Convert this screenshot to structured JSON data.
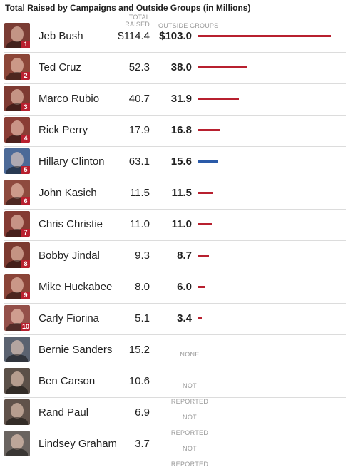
{
  "chart_data": {
    "type": "bar",
    "title": "Total Raised by Campaigns and Outside Groups (in Millions)",
    "columns": {
      "total": "TOTAL RAISED",
      "outside": "OUTSIDE GROUPS"
    },
    "colors": {
      "republican": "#b8202f",
      "democrat": "#2a5aa8"
    },
    "xlim": [
      0,
      103.0
    ],
    "rows": [
      {
        "rank": "1",
        "name": "Jeb Bush",
        "total": "$114.4",
        "outside": "$103.0",
        "outside_value": 103.0,
        "party": "republican",
        "photo": "#7a3c34"
      },
      {
        "rank": "2",
        "name": "Ted Cruz",
        "total": "52.3",
        "outside": "38.0",
        "outside_value": 38.0,
        "party": "republican",
        "photo": "#8c4638"
      },
      {
        "rank": "3",
        "name": "Marco Rubio",
        "total": "40.7",
        "outside": "31.9",
        "outside_value": 31.9,
        "party": "republican",
        "photo": "#7e3a32"
      },
      {
        "rank": "4",
        "name": "Rick Perry",
        "total": "17.9",
        "outside": "16.8",
        "outside_value": 16.8,
        "party": "republican",
        "photo": "#8a3d35"
      },
      {
        "rank": "5",
        "name": "Hillary Clinton",
        "total": "63.1",
        "outside": "15.6",
        "outside_value": 15.6,
        "party": "democrat",
        "photo": "#4c6a98"
      },
      {
        "rank": "6",
        "name": "John Kasich",
        "total": "11.5",
        "outside": "11.5",
        "outside_value": 11.5,
        "party": "republican",
        "photo": "#8e4a3e"
      },
      {
        "rank": "7",
        "name": "Chris Christie",
        "total": "11.0",
        "outside": "11.0",
        "outside_value": 11.0,
        "party": "republican",
        "photo": "#843b33"
      },
      {
        "rank": "8",
        "name": "Bobby Jindal",
        "total": "9.3",
        "outside": "8.7",
        "outside_value": 8.7,
        "party": "republican",
        "photo": "#7c3a30"
      },
      {
        "rank": "9",
        "name": "Mike Huckabee",
        "total": "8.0",
        "outside": "6.0",
        "outside_value": 6.0,
        "party": "republican",
        "photo": "#8a4438"
      },
      {
        "rank": "10",
        "name": "Carly Fiorina",
        "total": "5.1",
        "outside": "3.4",
        "outside_value": 3.4,
        "party": "republican",
        "photo": "#94504a"
      },
      {
        "name": "Bernie Sanders",
        "total": "15.2",
        "status": "NONE",
        "photo": "#5a6270"
      },
      {
        "name": "Ben Carson",
        "total": "10.6",
        "status": "NOT REPORTED",
        "photo": "#5b5048"
      },
      {
        "name": "Rand Paul",
        "total": "6.9",
        "status": "NOT REPORTED",
        "photo": "#60524a"
      },
      {
        "name": "Lindsey Graham",
        "total": "3.7",
        "status": "NOT REPORTED",
        "photo": "#6a6460"
      }
    ]
  }
}
